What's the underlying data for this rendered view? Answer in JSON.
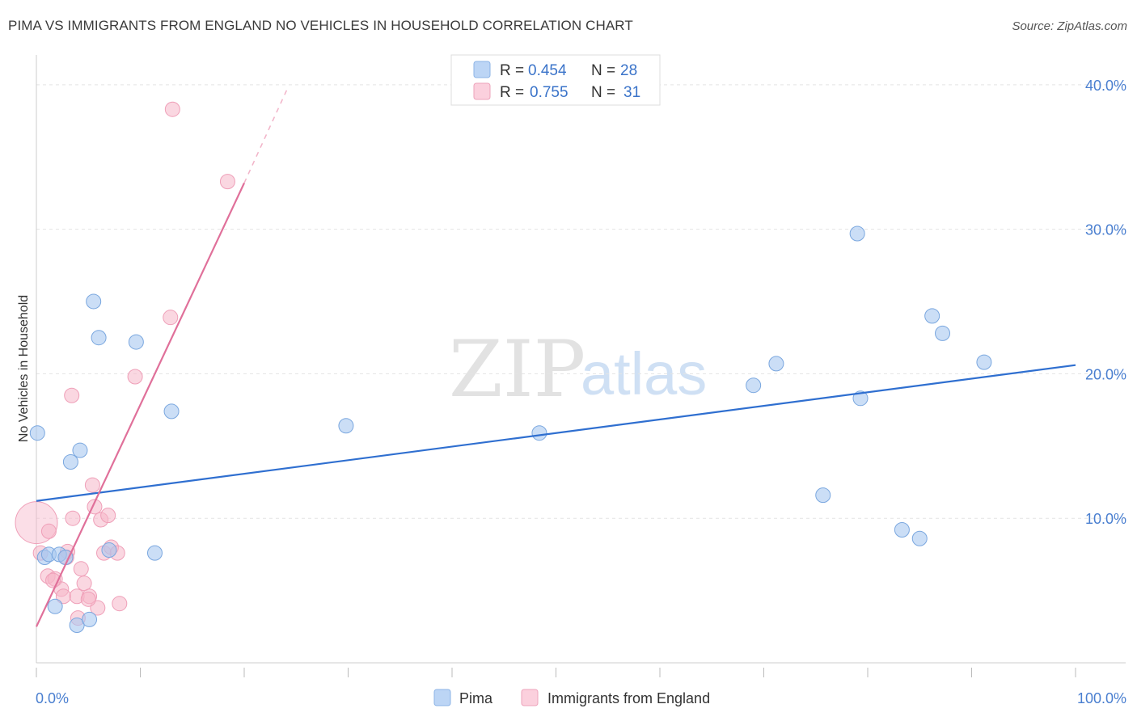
{
  "title": "PIMA VS IMMIGRANTS FROM ENGLAND NO VEHICLES IN HOUSEHOLD CORRELATION CHART",
  "source": "Source: ZipAtlas.com",
  "watermark": {
    "zip": "ZIP",
    "atlas": "atlas"
  },
  "colors": {
    "pima": "#a9c8f0",
    "pima_line": "#2f6fd0",
    "england": "#f6b6c9",
    "england_line": "#e0709a"
  },
  "legend": {
    "pima": {
      "r_label": "R =",
      "r_value": "0.454",
      "n_label": "N =",
      "n_value": "28"
    },
    "england": {
      "r_label": "R =",
      "r_value": "0.755",
      "n_label": "N =",
      "n_value": "31"
    }
  },
  "chart_data": {
    "type": "scatter",
    "title": "PIMA VS IMMIGRANTS FROM ENGLAND NO VEHICLES IN HOUSEHOLD CORRELATION CHART",
    "xlabel": "",
    "ylabel": "No Vehicles in Household",
    "xlim": [
      0,
      100
    ],
    "ylim": [
      0,
      41.5
    ],
    "x_tick_labels": [
      "0.0%",
      "100.0%"
    ],
    "y_ticks": [
      10,
      20,
      30,
      40
    ],
    "y_tick_labels": [
      "10.0%",
      "20.0%",
      "30.0%",
      "40.0%"
    ],
    "series": [
      {
        "name": "Pima",
        "r": 0.454,
        "n": 28,
        "trend": {
          "x0": 0,
          "y0": 11.2,
          "x1": 100,
          "y1": 20.6
        },
        "points": [
          {
            "x": 0.1,
            "y": 15.9
          },
          {
            "x": 0.8,
            "y": 7.3
          },
          {
            "x": 1.2,
            "y": 7.5
          },
          {
            "x": 1.8,
            "y": 3.9
          },
          {
            "x": 2.2,
            "y": 7.5
          },
          {
            "x": 2.8,
            "y": 7.3
          },
          {
            "x": 3.3,
            "y": 13.9
          },
          {
            "x": 4.2,
            "y": 14.7
          },
          {
            "x": 3.9,
            "y": 2.6
          },
          {
            "x": 5.1,
            "y": 3.0
          },
          {
            "x": 5.5,
            "y": 25.0
          },
          {
            "x": 6.0,
            "y": 22.5
          },
          {
            "x": 7.0,
            "y": 7.8
          },
          {
            "x": 9.6,
            "y": 22.2
          },
          {
            "x": 11.4,
            "y": 7.6
          },
          {
            "x": 13.0,
            "y": 17.4
          },
          {
            "x": 29.8,
            "y": 16.4
          },
          {
            "x": 48.4,
            "y": 15.9
          },
          {
            "x": 69.0,
            "y": 19.2
          },
          {
            "x": 71.2,
            "y": 20.7
          },
          {
            "x": 75.7,
            "y": 11.6
          },
          {
            "x": 79.0,
            "y": 29.7
          },
          {
            "x": 79.3,
            "y": 18.3
          },
          {
            "x": 83.3,
            "y": 9.2
          },
          {
            "x": 85.0,
            "y": 8.6
          },
          {
            "x": 86.2,
            "y": 24.0
          },
          {
            "x": 87.2,
            "y": 22.8
          },
          {
            "x": 91.2,
            "y": 20.8
          }
        ]
      },
      {
        "name": "Immigrants from England",
        "r": 0.755,
        "n": 31,
        "trend": {
          "x0": 0,
          "y0": 2.5,
          "x1": 20,
          "y1": 33.2
        },
        "trend_dashed": {
          "x0": 20,
          "y0": 33.2,
          "x1": 24.2,
          "y1": 39.8
        },
        "points": [
          {
            "x": 0.0,
            "y": 9.7,
            "big": true
          },
          {
            "x": 0.4,
            "y": 7.6
          },
          {
            "x": 1.2,
            "y": 9.1
          },
          {
            "x": 1.1,
            "y": 6.0
          },
          {
            "x": 1.8,
            "y": 5.8
          },
          {
            "x": 2.4,
            "y": 5.1
          },
          {
            "x": 2.6,
            "y": 4.6
          },
          {
            "x": 3.0,
            "y": 7.7
          },
          {
            "x": 3.4,
            "y": 18.5
          },
          {
            "x": 3.5,
            "y": 10.0
          },
          {
            "x": 3.9,
            "y": 4.6
          },
          {
            "x": 4.0,
            "y": 3.1
          },
          {
            "x": 4.3,
            "y": 6.5
          },
          {
            "x": 4.6,
            "y": 5.5
          },
          {
            "x": 5.1,
            "y": 4.6
          },
          {
            "x": 5.4,
            "y": 12.3
          },
          {
            "x": 5.6,
            "y": 10.8
          },
          {
            "x": 5.9,
            "y": 3.8
          },
          {
            "x": 6.2,
            "y": 9.9
          },
          {
            "x": 6.5,
            "y": 7.6
          },
          {
            "x": 6.9,
            "y": 10.2
          },
          {
            "x": 7.2,
            "y": 8.0
          },
          {
            "x": 7.8,
            "y": 7.6
          },
          {
            "x": 8.0,
            "y": 4.1
          },
          {
            "x": 9.5,
            "y": 19.8
          },
          {
            "x": 12.9,
            "y": 23.9
          },
          {
            "x": 13.1,
            "y": 38.3
          },
          {
            "x": 18.4,
            "y": 33.3
          },
          {
            "x": 1.6,
            "y": 5.7
          },
          {
            "x": 2.9,
            "y": 7.3
          },
          {
            "x": 5.0,
            "y": 4.4
          }
        ]
      }
    ]
  },
  "bottom_legend": {
    "pima": "Pima",
    "england": "Immigrants from England"
  }
}
